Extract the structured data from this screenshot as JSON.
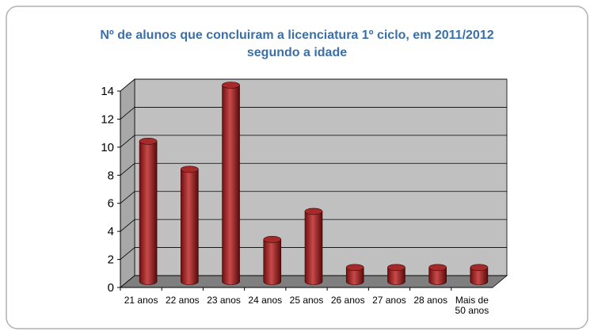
{
  "chart_data": {
    "type": "bar",
    "title": "Nº de alunos que concluiram a licenciatura 1º ciclo, em 2011/2012 segundo a idade",
    "categories": [
      "21 anos",
      "22 anos",
      "23 anos",
      "24 anos",
      "25 anos",
      "26 anos",
      "27 anos",
      "28 anos",
      "Mais de 50 anos"
    ],
    "values": [
      10,
      8,
      14,
      3,
      5,
      1,
      1,
      1,
      1
    ],
    "color": "#a52a2a",
    "ylim": [
      0,
      14
    ],
    "yticks": [
      0,
      2,
      4,
      6,
      8,
      10,
      12,
      14
    ],
    "grid": true
  }
}
